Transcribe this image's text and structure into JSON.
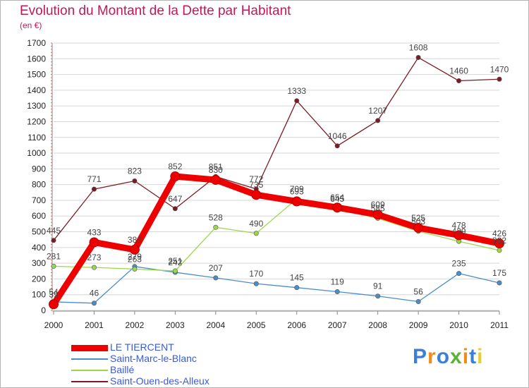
{
  "title": "Evolution du Montant de la Dette par Habitant",
  "unit": "(en €)",
  "brand": "Proxiti",
  "chart_data": {
    "type": "line",
    "title": "Evolution du Montant de la Dette par Habitant",
    "ylabel": "(en €)",
    "xlabel": "",
    "ylim": [
      0,
      1700
    ],
    "yticks": [
      0,
      100,
      200,
      300,
      400,
      500,
      600,
      700,
      800,
      900,
      1000,
      1100,
      1200,
      1300,
      1400,
      1500,
      1600,
      1700
    ],
    "categories": [
      "2000",
      "2001",
      "2002",
      "2003",
      "2004",
      "2005",
      "2006",
      "2007",
      "2008",
      "2009",
      "2010",
      "2011"
    ],
    "series": [
      {
        "name": "Saint-Ouen-des-Alleux",
        "color": "#7b1c24",
        "values": [
          445,
          771,
          823,
          647,
          851,
          772,
          1333,
          1046,
          1207,
          1608,
          1460,
          1470
        ]
      },
      {
        "name": "Saint-Marc-le-Blanc",
        "color": "#4a8ec9",
        "values": [
          54,
          46,
          279,
          242,
          207,
          170,
          145,
          119,
          91,
          56,
          235,
          175
        ]
      },
      {
        "name": "Baillé",
        "color": "#9ad84a",
        "values": [
          281,
          273,
          263,
          251,
          528,
          490,
          709,
          645,
          585,
          503,
          439,
          382
        ]
      },
      {
        "name": "LE TIERCENT",
        "color": "#ee0000",
        "values": [
          39,
          433,
          386,
          852,
          830,
          735,
          693,
          654,
          609,
          525,
          478,
          426
        ]
      }
    ],
    "legend": [
      {
        "name": "LE TIERCENT",
        "color": "#ee0000"
      },
      {
        "name": "Saint-Marc-le-Blanc",
        "color": "#4a8ec9"
      },
      {
        "name": "Baillé",
        "color": "#9ad84a"
      },
      {
        "name": "Saint-Ouen-des-Alleux",
        "color": "#7b1c24"
      }
    ]
  }
}
